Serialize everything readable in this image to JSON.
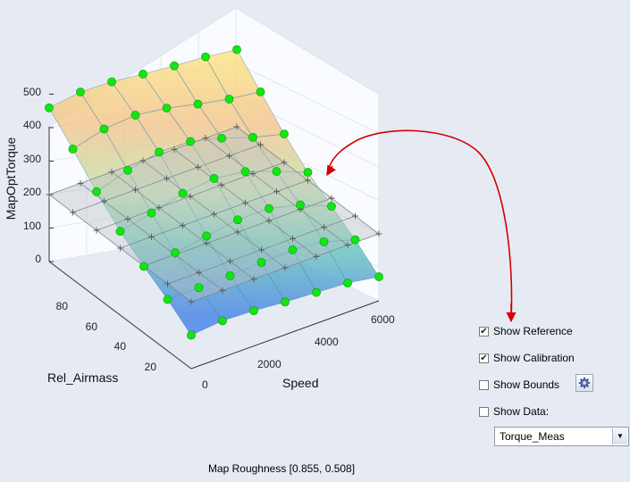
{
  "plot": {
    "zlabel": "MapOptTorque",
    "xlabel": "Rel_Airmass",
    "ylabel": "Speed",
    "z_ticks": [
      "0",
      "100",
      "200",
      "300",
      "400",
      "500"
    ],
    "airmass_ticks": [
      "20",
      "40",
      "60",
      "80"
    ],
    "speed_ticks": [
      "0",
      "2000",
      "4000",
      "6000"
    ]
  },
  "controls": {
    "show_reference": {
      "label": "Show Reference",
      "checked": true
    },
    "show_calibration": {
      "label": "Show Calibration",
      "checked": true
    },
    "show_bounds": {
      "label": "Show Bounds",
      "checked": false
    },
    "show_data": {
      "label": "Show Data:",
      "checked": false
    },
    "data_select": {
      "value": "Torque_Meas"
    }
  },
  "status": "Map Roughness [0.855, 0.508]",
  "colors": {
    "background": "#e6ebf3",
    "point": "#12e612",
    "annotation_arrow": "#d40000"
  },
  "icons": {
    "gear": "gear-icon",
    "dropdown": "chevron-down-icon"
  }
}
